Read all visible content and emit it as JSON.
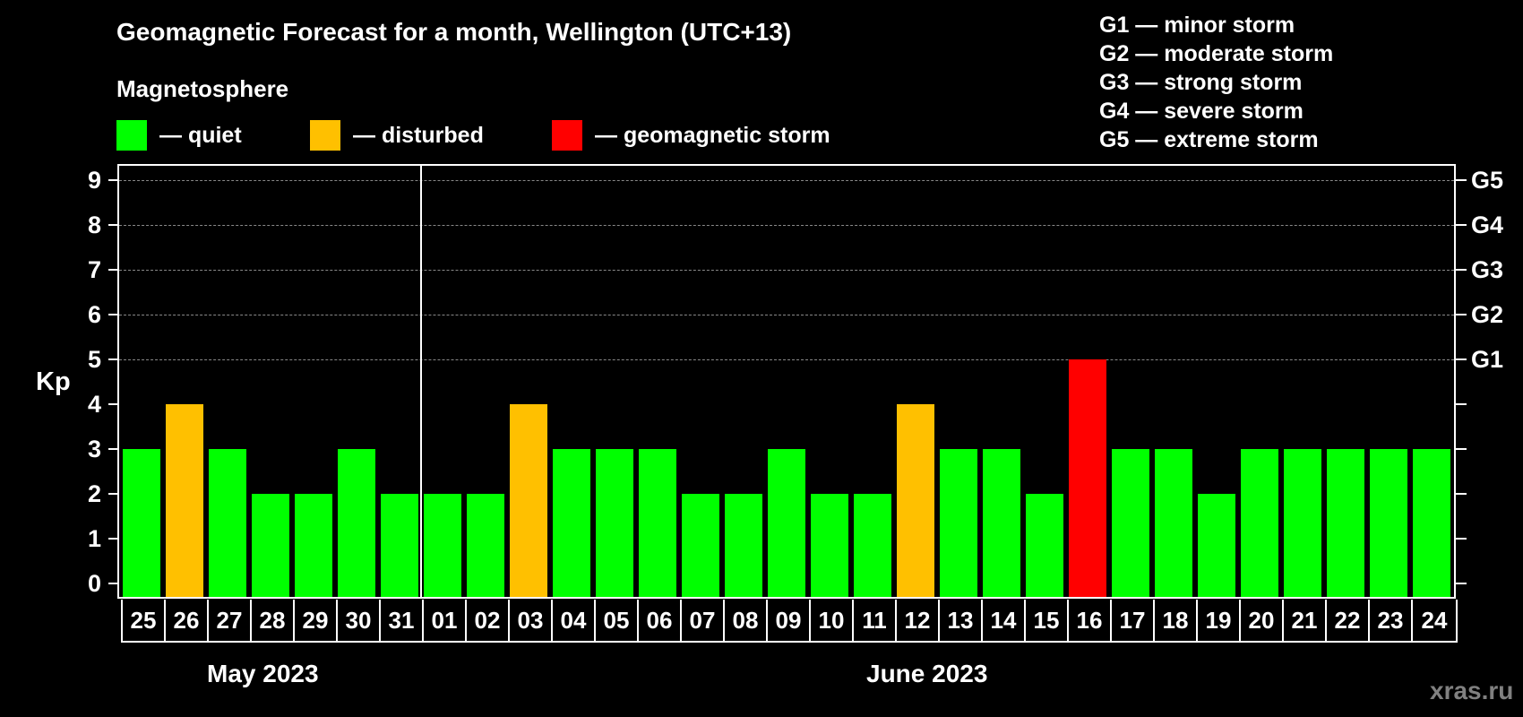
{
  "header": {
    "title": "Geomagnetic Forecast for a month, Wellington (UTC+13)",
    "subtitle": "Magnetosphere"
  },
  "legend": [
    {
      "label": "— quiet",
      "color": "#00ff00"
    },
    {
      "label": "— disturbed",
      "color": "#ffc000"
    },
    {
      "label": "— geomagnetic storm",
      "color": "#ff0000"
    }
  ],
  "g_legend": [
    "G1 — minor storm",
    "G2 — moderate storm",
    "G3 — strong storm",
    "G4 — severe storm",
    "G5 — extreme storm"
  ],
  "axis": {
    "ylabel": "Kp",
    "yticks": [
      "0",
      "1",
      "2",
      "3",
      "4",
      "5",
      "6",
      "7",
      "8",
      "9"
    ],
    "right_ticks": {
      "5": "G1",
      "6": "G2",
      "7": "G3",
      "8": "G4",
      "9": "G5"
    }
  },
  "months": [
    {
      "label": "May 2023"
    },
    {
      "label": "June 2023"
    }
  ],
  "watermark": "xras.ru",
  "chart_data": {
    "type": "bar",
    "title": "Geomagnetic Forecast for a month, Wellington (UTC+13)",
    "subtitle": "Magnetosphere",
    "xlabel": "",
    "ylabel": "Kp",
    "ylim": [
      0,
      9
    ],
    "grid": "dashed horizontal at Kp 5-9",
    "categories": [
      "25",
      "26",
      "27",
      "28",
      "29",
      "30",
      "31",
      "01",
      "02",
      "03",
      "04",
      "05",
      "06",
      "07",
      "08",
      "09",
      "10",
      "11",
      "12",
      "13",
      "14",
      "15",
      "16",
      "17",
      "18",
      "19",
      "20",
      "21",
      "22",
      "23",
      "24"
    ],
    "month_groups": [
      {
        "label": "May 2023",
        "days": [
          "25",
          "26",
          "27",
          "28",
          "29",
          "30",
          "31"
        ]
      },
      {
        "label": "June 2023",
        "days": [
          "01",
          "02",
          "03",
          "04",
          "05",
          "06",
          "07",
          "08",
          "09",
          "10",
          "11",
          "12",
          "13",
          "14",
          "15",
          "16",
          "17",
          "18",
          "19",
          "20",
          "21",
          "22",
          "23",
          "24"
        ]
      }
    ],
    "values": [
      3,
      4,
      3,
      2,
      2,
      3,
      2,
      2,
      2,
      4,
      3,
      3,
      3,
      2,
      2,
      3,
      2,
      2,
      4,
      3,
      3,
      2,
      5,
      3,
      3,
      2,
      3,
      3,
      3,
      3,
      3
    ],
    "status": [
      "quiet",
      "disturbed",
      "quiet",
      "quiet",
      "quiet",
      "quiet",
      "quiet",
      "quiet",
      "quiet",
      "disturbed",
      "quiet",
      "quiet",
      "quiet",
      "quiet",
      "quiet",
      "quiet",
      "quiet",
      "quiet",
      "disturbed",
      "quiet",
      "quiet",
      "quiet",
      "storm",
      "quiet",
      "quiet",
      "quiet",
      "quiet",
      "quiet",
      "quiet",
      "quiet",
      "quiet"
    ],
    "colors": {
      "quiet": "#00ff00",
      "disturbed": "#ffc000",
      "storm": "#ff0000"
    },
    "right_axis": {
      "5": "G1",
      "6": "G2",
      "7": "G3",
      "8": "G4",
      "9": "G5"
    },
    "legend": [
      "quiet",
      "disturbed",
      "geomagnetic storm"
    ]
  }
}
